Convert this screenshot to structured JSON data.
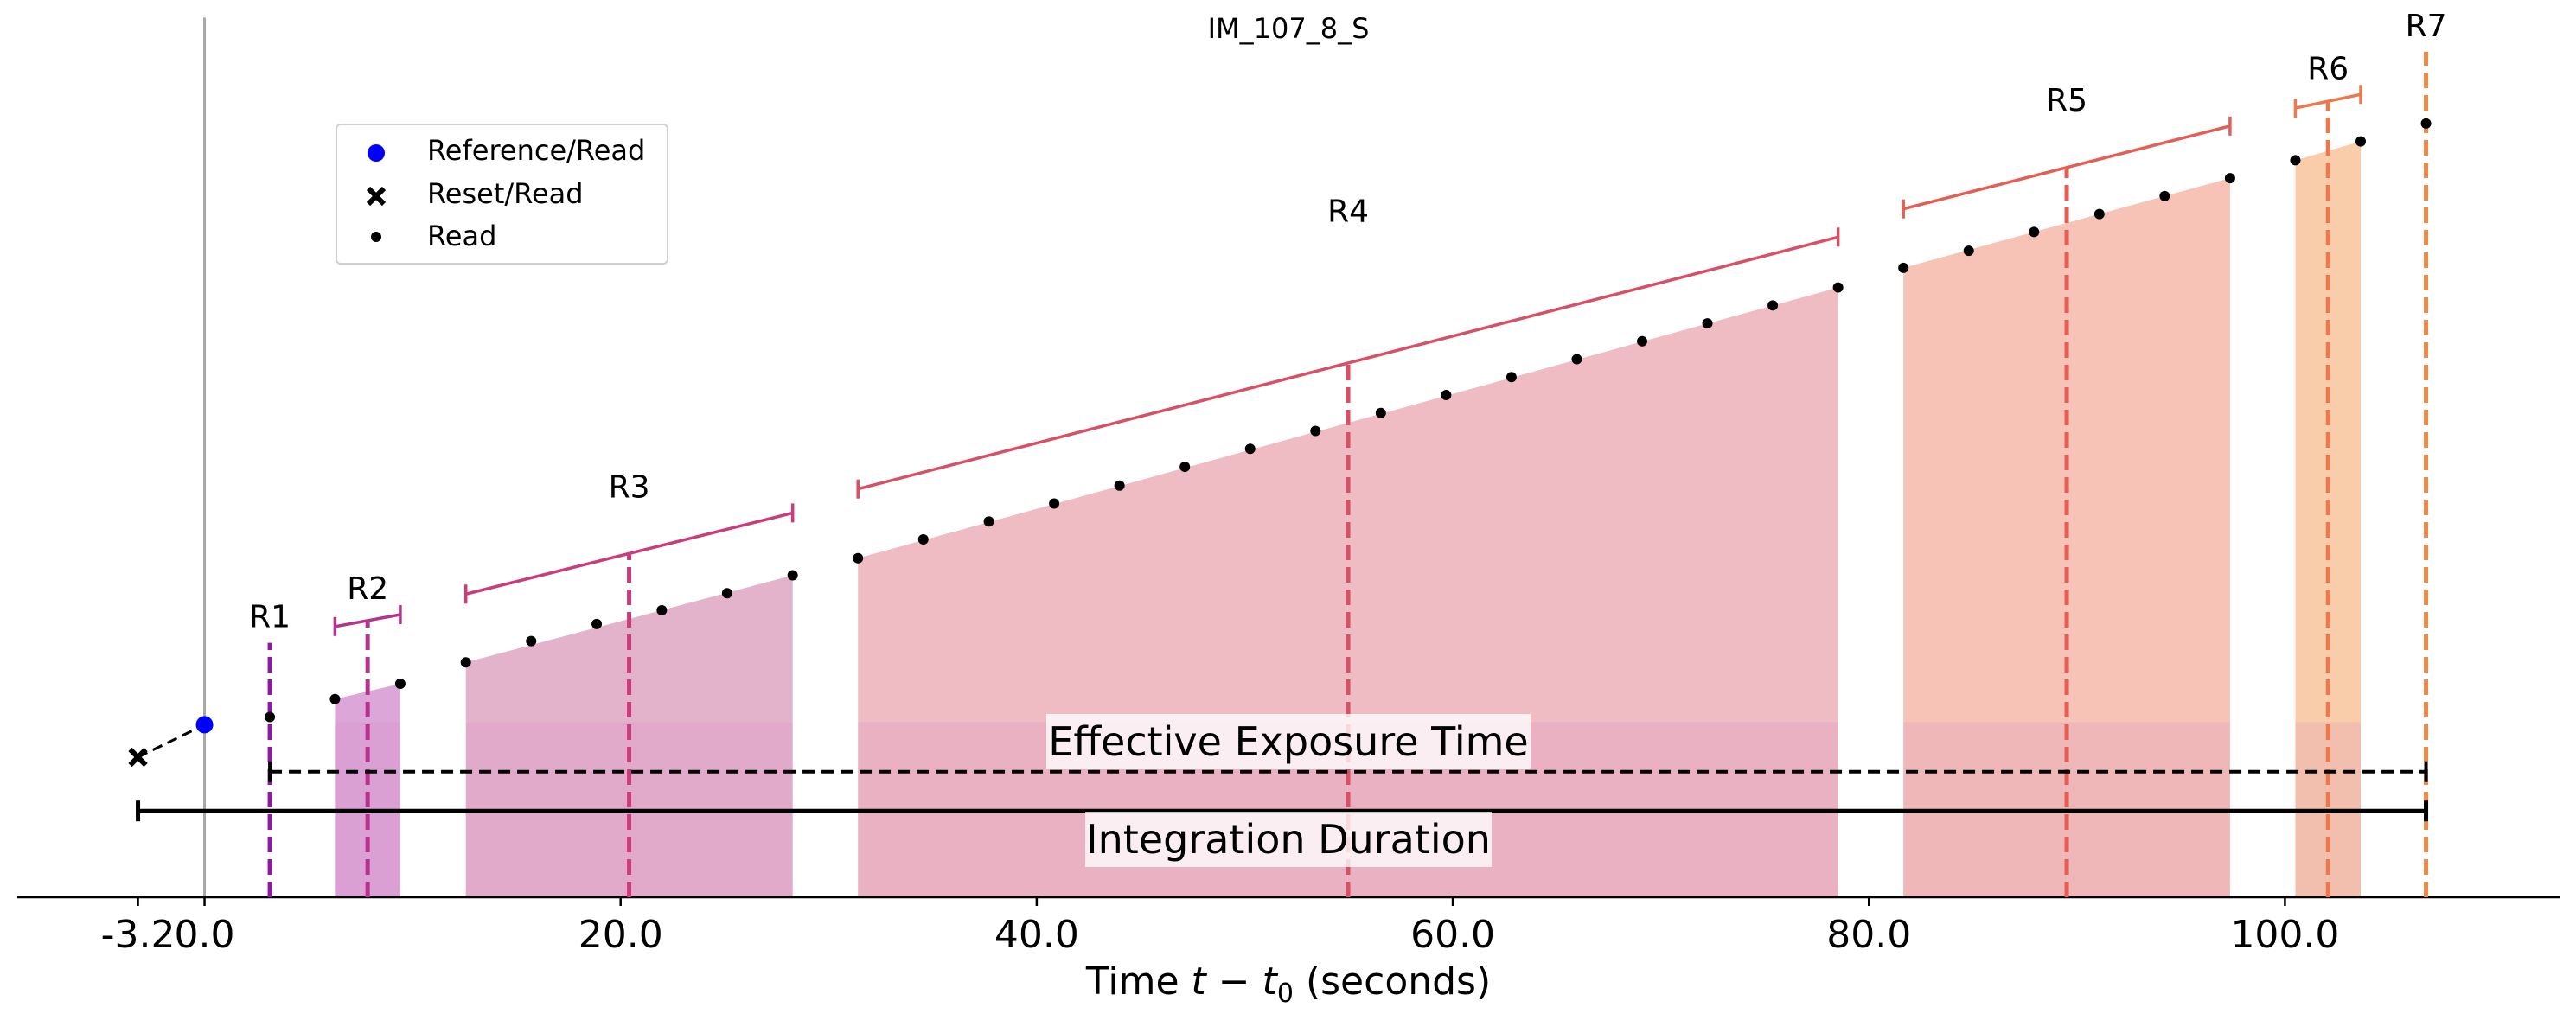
{
  "chart_data": {
    "type": "scatter",
    "title": "IM_107_8_S",
    "xlabel": "Time $t - t_0$ (seconds)",
    "xlabel_parts": {
      "prefix": "Time ",
      "var": "t",
      "minus": " − ",
      "sub_base": "t",
      "sub": "0",
      "suffix": " (seconds)"
    },
    "ylabel": "",
    "xlim": [
      -9.0,
      113.2
    ],
    "ylim": [
      0,
      1
    ],
    "xticks": [
      -3.2,
      0.0,
      20.0,
      40.0,
      60.0,
      80.0,
      100.0
    ],
    "xtick_labels": [
      "-3.2",
      "0.0",
      "20.0",
      "40.0",
      "60.0",
      "80.0",
      "100.0"
    ],
    "grid": false,
    "legend_placement": "upper-left",
    "legend": [
      {
        "label": "Reference/Read",
        "marker": "circle",
        "color": "#0000ff"
      },
      {
        "label": "Reset/Read",
        "marker": "x",
        "color": "#000000"
      },
      {
        "label": "Read",
        "marker": "dot",
        "color": "#000000"
      }
    ],
    "reset_read": {
      "x": -3.2,
      "y": 0.164
    },
    "reference_read": {
      "x": 0.0,
      "y": 0.202
    },
    "reads": [
      [
        3.14,
        0.211
      ],
      [
        6.27,
        0.232
      ],
      [
        9.41,
        0.25
      ],
      [
        12.56,
        0.275
      ],
      [
        15.7,
        0.3
      ],
      [
        18.85,
        0.32
      ],
      [
        21.98,
        0.336
      ],
      [
        25.12,
        0.356
      ],
      [
        28.27,
        0.377
      ],
      [
        31.41,
        0.397
      ],
      [
        34.55,
        0.419
      ],
      [
        37.7,
        0.44
      ],
      [
        40.84,
        0.461
      ],
      [
        43.98,
        0.482
      ],
      [
        47.12,
        0.504
      ],
      [
        50.26,
        0.525
      ],
      [
        53.4,
        0.546
      ],
      [
        56.54,
        0.567
      ],
      [
        59.68,
        0.588
      ],
      [
        62.82,
        0.609
      ],
      [
        65.96,
        0.63
      ],
      [
        69.1,
        0.651
      ],
      [
        72.24,
        0.672
      ],
      [
        75.38,
        0.693
      ],
      [
        78.52,
        0.714
      ],
      [
        81.66,
        0.737
      ],
      [
        84.8,
        0.757
      ],
      [
        87.94,
        0.779
      ],
      [
        91.08,
        0.8
      ],
      [
        94.22,
        0.821
      ],
      [
        97.36,
        0.842
      ],
      [
        100.5,
        0.863
      ],
      [
        103.64,
        0.885
      ],
      [
        106.78,
        0.906
      ]
    ],
    "resultants": [
      {
        "name": "R1",
        "color": "#8b1a9e",
        "fill": null,
        "marker_x": 3.14,
        "start": 3.14,
        "end": 3.14,
        "bracket_y": [
          0.298,
          0.298
        ],
        "line_top": 0.298
      },
      {
        "name": "R2",
        "color": "#b5338c",
        "fill": "#dca6d8",
        "marker_x": 7.84,
        "start": 6.27,
        "end": 9.41,
        "bracket_y": [
          0.317,
          0.331
        ],
        "line_top": 0.322,
        "fill_top": [
          0.232,
          0.25
        ]
      },
      {
        "name": "R3",
        "color": "#c93d7a",
        "fill": "#e3b3cc",
        "marker_x": 20.41,
        "start": 12.56,
        "end": 28.27,
        "bracket_y": [
          0.355,
          0.45
        ],
        "line_top": 0.403,
        "fill_top": [
          0.275,
          0.377
        ]
      },
      {
        "name": "R4",
        "color": "#d65066",
        "fill": "#eebcc2",
        "marker_x": 54.97,
        "start": 31.41,
        "end": 78.52,
        "bracket_y": [
          0.478,
          0.773
        ],
        "line_top": 0.626,
        "fill_top": [
          0.397,
          0.714
        ]
      },
      {
        "name": "R5",
        "color": "#e35e55",
        "fill": "#f6c3b6",
        "marker_x": 89.51,
        "start": 81.66,
        "end": 97.36,
        "bracket_y": [
          0.806,
          0.903
        ],
        "line_top": 0.855,
        "fill_top": [
          0.737,
          0.842
        ]
      },
      {
        "name": "R6",
        "color": "#ea7a4e",
        "fill": "#f9cda9",
        "marker_x": 102.07,
        "start": 100.5,
        "end": 103.64,
        "bracket_y": [
          0.924,
          0.94
        ],
        "line_top": 0.932,
        "fill_top": [
          0.863,
          0.885
        ]
      },
      {
        "name": "R7",
        "color": "#ee8a45",
        "fill": null,
        "marker_x": 106.78,
        "start": 106.78,
        "end": 106.78,
        "bracket_y": [
          0.99,
          0.99
        ],
        "line_top": 0.99
      }
    ],
    "effective_exposure_time": {
      "label": "Effective Exposure Time",
      "start": 3.14,
      "end": 106.78,
      "y": 0.147
    },
    "integration_duration": {
      "label": "Integration Duration",
      "start": -3.2,
      "end": 106.78,
      "y": 0.101
    },
    "lower_fill_top": 0.205
  }
}
